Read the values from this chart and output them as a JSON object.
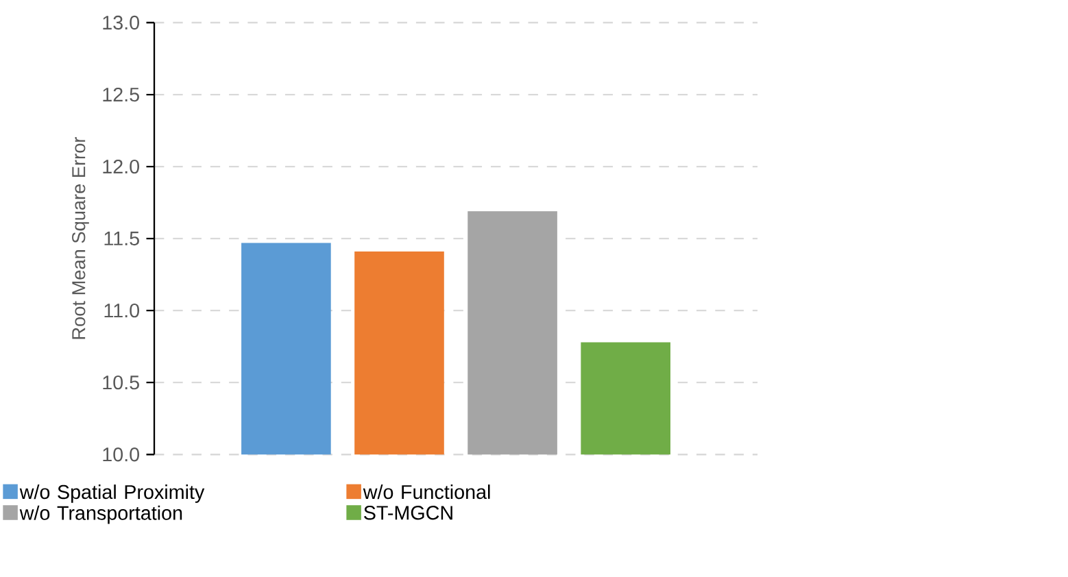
{
  "chart_data": {
    "type": "bar",
    "ylabel": "Root Mean Square Error",
    "categories": [
      null
    ],
    "series": [
      {
        "name": "w/o Spatial Proximity",
        "color": "#5b9bd5",
        "values": [
          11.47
        ]
      },
      {
        "name": "w/o Functional",
        "color": "#ed7d31",
        "values": [
          11.41
        ]
      },
      {
        "name": "w/o Transportation",
        "color": "#a5a5a5",
        "values": [
          11.69
        ]
      },
      {
        "name": "ST-MGCN",
        "color": "#70ad47",
        "values": [
          10.78
        ]
      }
    ],
    "ylim": [
      10,
      13
    ],
    "yticks": [
      {
        "value": 10,
        "label": "10.0"
      },
      {
        "value": 10.5,
        "label": "10.5"
      },
      {
        "value": 11,
        "label": "11.0"
      },
      {
        "value": 11.5,
        "label": "11.5"
      },
      {
        "value": 12,
        "label": "12.0"
      },
      {
        "value": 12.5,
        "label": "12.5"
      },
      {
        "value": 13,
        "label": "13.0"
      }
    ],
    "grid": "y",
    "legend": "bottom"
  }
}
